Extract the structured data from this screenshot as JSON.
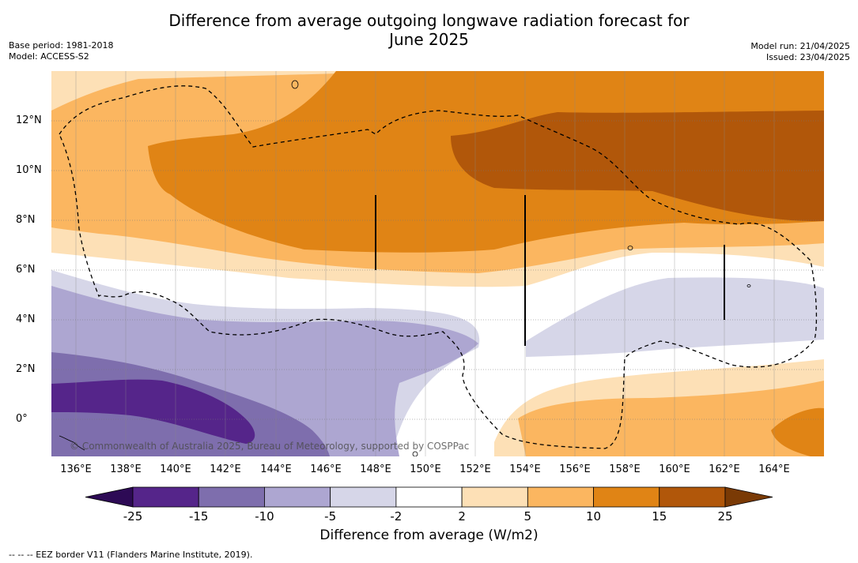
{
  "title_line1": "Difference from average outgoing longwave radiation forecast for",
  "title_line2": "June 2025",
  "base_period": "Base period: 1981-2018",
  "model": "Model: ACCESS-S2",
  "model_run": "Model run: 21/04/2025",
  "issued": "Issued: 23/04/2025",
  "copyright": "© Commonwealth of Australia 2025, Bureau of Meteorology, supported by COSPPac",
  "lat_labels": [
    "12°N",
    "10°N",
    "8°N",
    "6°N",
    "4°N",
    "2°N",
    "0°"
  ],
  "lon_labels": [
    "136°E",
    "138°E",
    "140°E",
    "142°E",
    "144°E",
    "146°E",
    "148°E",
    "150°E",
    "152°E",
    "154°E",
    "156°E",
    "158°E",
    "160°E",
    "162°E",
    "164°E"
  ],
  "colorbar": {
    "title": "Difference from average (W/m2)",
    "ticks": [
      "-25",
      "-15",
      "-10",
      "-5",
      "-2",
      "2",
      "5",
      "10",
      "15",
      "25"
    ],
    "colors": [
      "#2d0a55",
      "#55258a",
      "#7e6ead",
      "#ada6d1",
      "#d6d6e8",
      "#ffffff",
      "#fde0b6",
      "#fbb660",
      "#e08415",
      "#b1570a",
      "#7a3a05"
    ]
  },
  "legend_note": "--  --  -- EEZ border V11 (Flanders Marine Institute, 2019)."
}
